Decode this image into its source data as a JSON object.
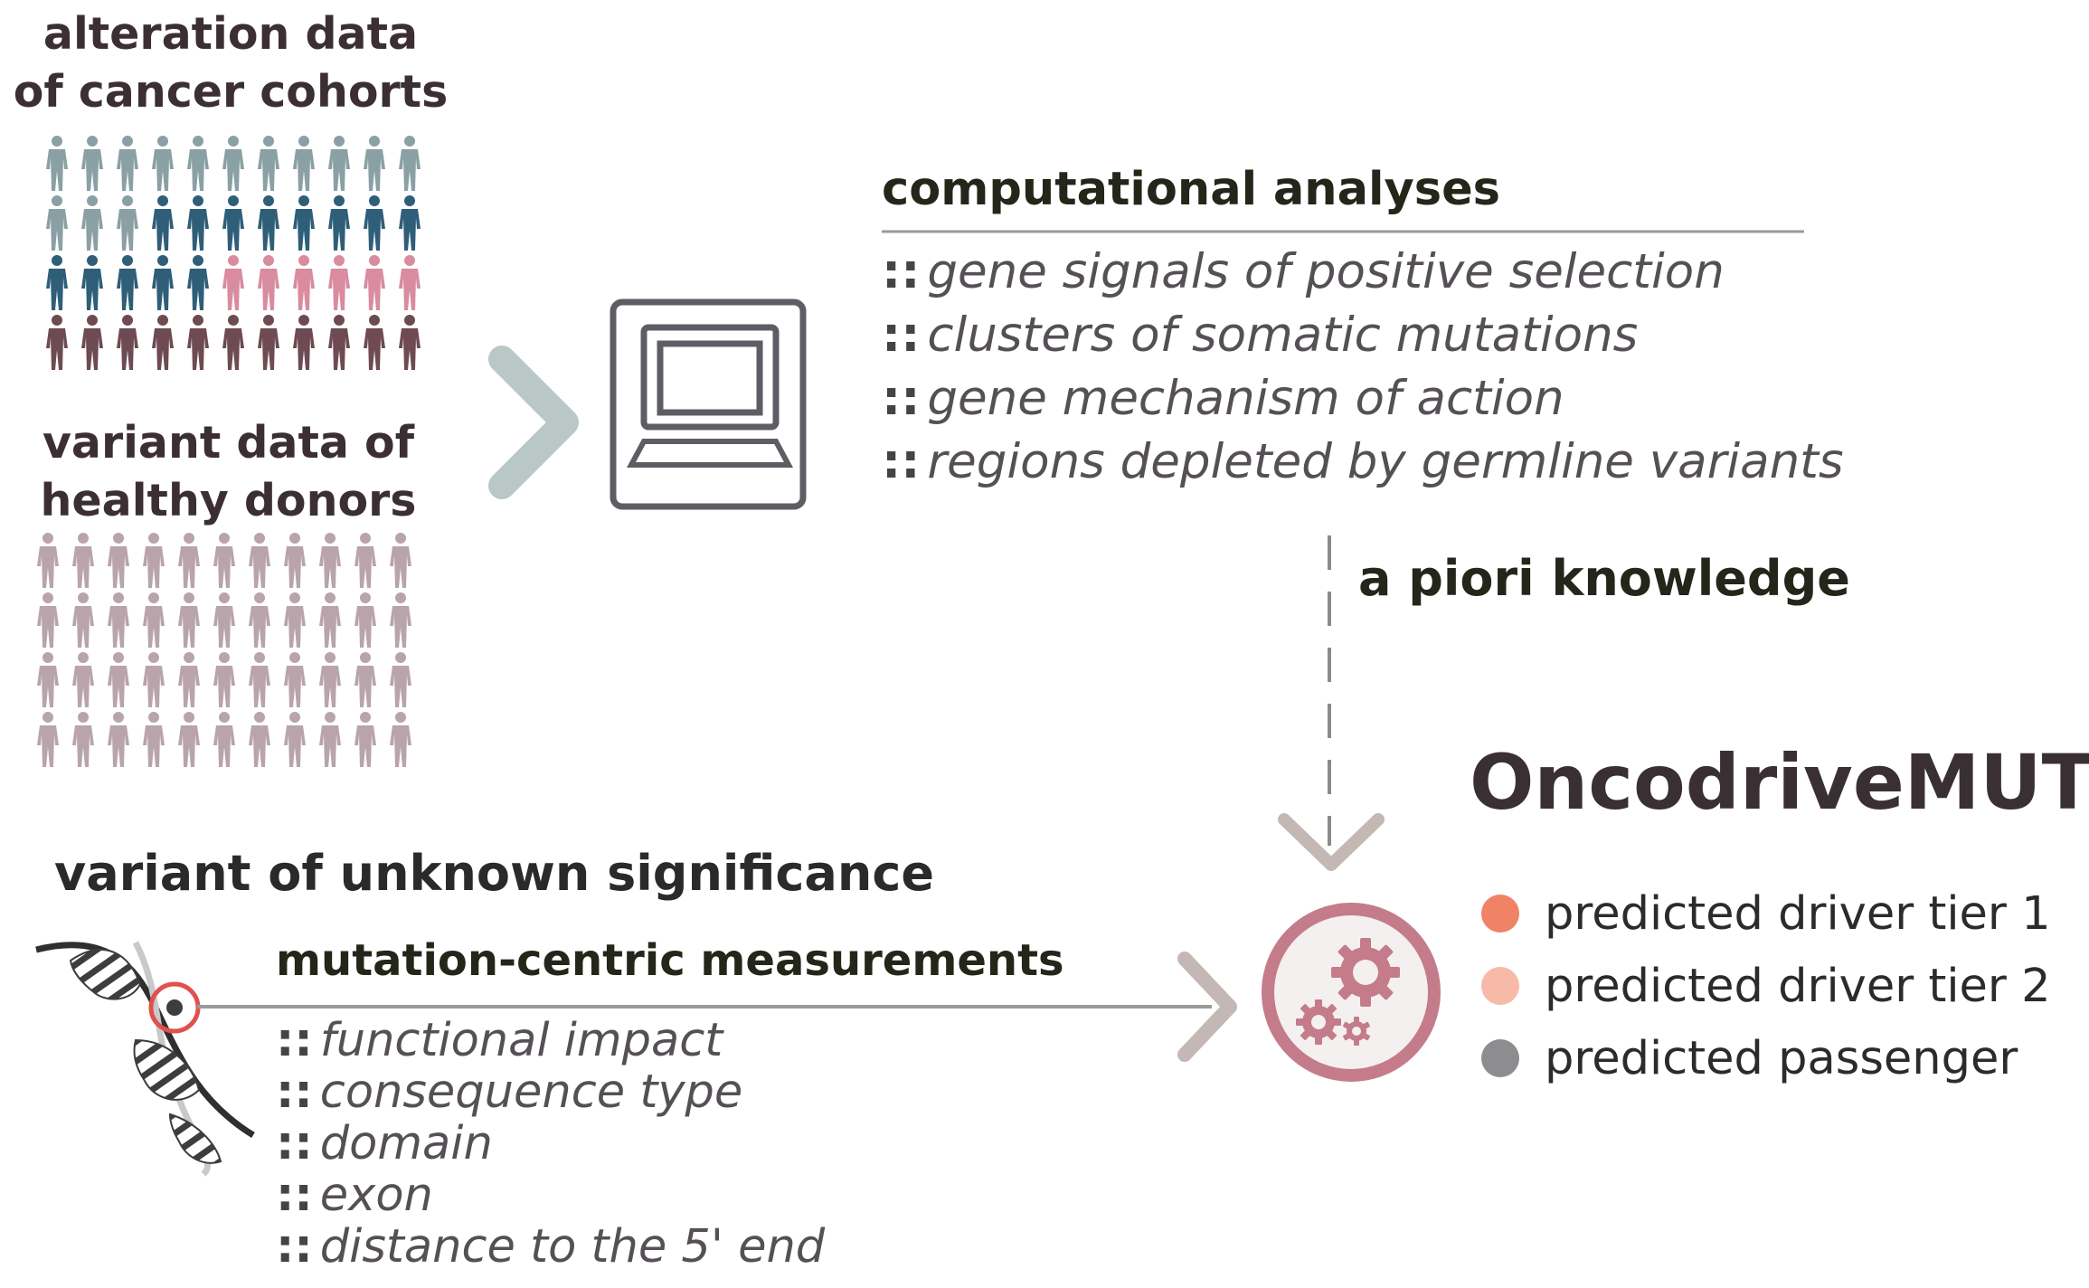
{
  "cohorts": {
    "title_line1": "alteration data",
    "title_line2": "of cancer cohorts",
    "colors": [
      "#8aa0a4",
      "#2f5e78",
      "#d98ba0",
      "#6e4a52"
    ]
  },
  "healthy": {
    "title_line1": "variant data of",
    "title_line2": "healthy donors",
    "color": "#b9a4ab"
  },
  "computational": {
    "title": "computational analyses",
    "items": [
      "gene signals of positive selection",
      "clusters of somatic mutations",
      "gene mechanism of action",
      "regions depleted by germline variants"
    ]
  },
  "apriori": {
    "label": "a piori knowledge"
  },
  "vus": {
    "title": "variant of unknown significance"
  },
  "mutation": {
    "title": "mutation-centric measurements",
    "items": [
      "functional impact",
      "consequence type",
      "domain",
      "exon",
      "distance to the 5' end"
    ]
  },
  "tool": {
    "name": "OncodriveMUT",
    "icon": "gears-icon"
  },
  "legend": [
    {
      "label": "predicted driver tier 1",
      "color": "#f08366"
    },
    {
      "label": "predicted driver tier 2",
      "color": "#f7b9a8"
    },
    {
      "label": "predicted passenger",
      "color": "#8d8c8e"
    }
  ],
  "palette": {
    "arrow": "#b9c7c7",
    "chevron": "#c4b8b4",
    "gear_ring": "#c47c8a",
    "computer": "#605c63"
  }
}
